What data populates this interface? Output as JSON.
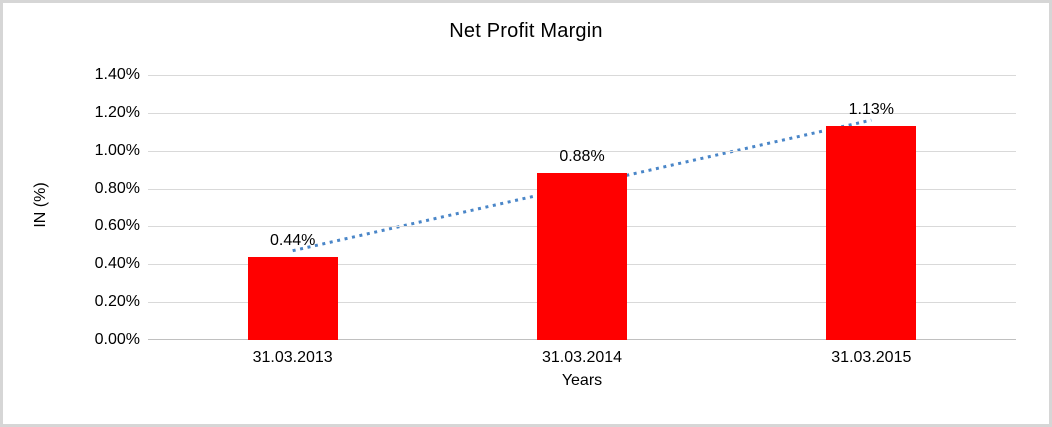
{
  "chart_data": {
    "type": "bar",
    "title": "Net Profit Margin",
    "xlabel": "Years",
    "ylabel": "IN (%)",
    "categories": [
      "31.03.2013",
      "31.03.2014",
      "31.03.2015"
    ],
    "values": [
      0.44,
      0.88,
      1.13
    ],
    "data_labels": [
      "0.44%",
      "0.88%",
      "1.13%"
    ],
    "unit": "%",
    "ylim": [
      0,
      1.4
    ],
    "ytick_step": 0.2,
    "ytick_labels": [
      "0.00%",
      "0.20%",
      "0.40%",
      "0.60%",
      "0.80%",
      "1.00%",
      "1.20%",
      "1.40%"
    ],
    "grid": true,
    "legend": "none",
    "trendline": {
      "type": "linear",
      "style": "dotted"
    },
    "colors": {
      "bar": "#FF0000",
      "trendline": "#4A86C8",
      "gridline": "#D9D9D9",
      "axis_line": "#C0C0C0",
      "text": "#000000",
      "background": "#FFFFFF",
      "border": "#D6D6D6"
    }
  }
}
